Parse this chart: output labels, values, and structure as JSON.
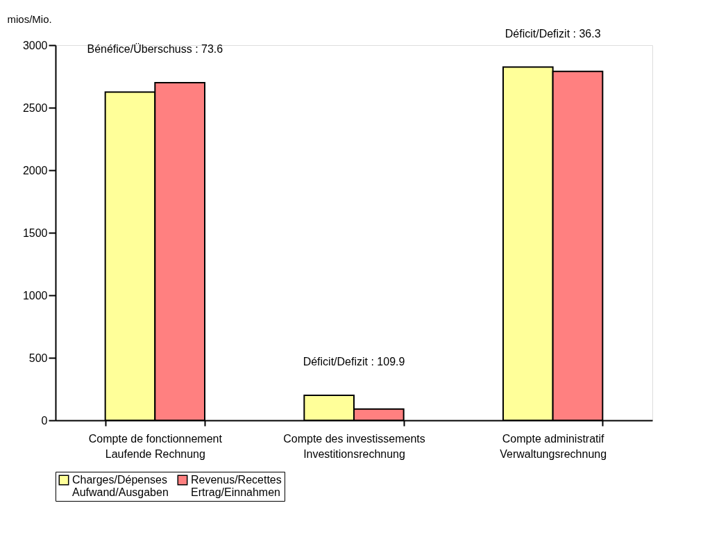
{
  "chart_data": {
    "type": "bar",
    "ylabel": "mios/Mio.",
    "categories": [
      "Compte de fonctionnement\nLaufende Rechnung",
      "Compte des investissements\nInvestitionsrechnung",
      "Compte administratif\nVerwaltungsrechnung"
    ],
    "series": [
      {
        "name": "Charges/Dépenses\nAufwand/Ausgaben",
        "color": "#ffff99",
        "values": [
          2625,
          200,
          2825
        ]
      },
      {
        "name": "Revenus/Recettes\nErtrag/Einnahmen",
        "color": "#ff8080",
        "values": [
          2700,
          90,
          2790
        ]
      }
    ],
    "ylim": [
      0,
      3000
    ],
    "yticks": [
      0,
      500,
      1000,
      1500,
      2000,
      2500,
      3000
    ],
    "grid": false,
    "legend": "bottom",
    "annotations": [
      "Bénéfice/Überschuss : 73.6",
      "Déficit/Defizit : 109.9",
      "Déficit/Defizit : 36.3"
    ]
  }
}
